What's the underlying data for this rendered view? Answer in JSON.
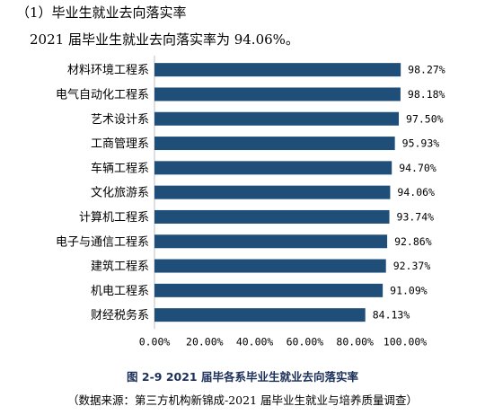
{
  "section_heading": "（1）毕业生就业去向落实率",
  "intro_text": "2021 届毕业生就业去向落实率为 94.06%。",
  "chart_data": {
    "type": "bar",
    "orientation": "horizontal",
    "categories": [
      "材料环境工程系",
      "电气自动化工程系",
      "艺术设计系",
      "工商管理系",
      "车辆工程系",
      "文化旅游系",
      "计算机工程系",
      "电子与通信工程系",
      "建筑工程系",
      "机电工程系",
      "财经税务系"
    ],
    "values": [
      98.27,
      98.18,
      97.5,
      95.93,
      94.7,
      94.06,
      93.74,
      92.86,
      92.37,
      91.09,
      84.13
    ],
    "value_labels": [
      "98.27%",
      "98.18%",
      "97.50%",
      "95.93%",
      "94.70%",
      "94.06%",
      "93.74%",
      "92.86%",
      "92.37%",
      "91.09%",
      "84.13%"
    ],
    "xlim": [
      0,
      100
    ],
    "x_ticks": [
      "0.00%",
      "20.00%",
      "40.00%",
      "60.00%",
      "80.00%",
      "100.00%"
    ],
    "bar_color": "#1f4e79",
    "grid": false
  },
  "figure_caption": "图 2-9   2021 届毕各系毕业生就业去向落实率",
  "source_note": "（数据来源：第三方机构新锦成-2021 届毕业生就业与培养质量调查）"
}
